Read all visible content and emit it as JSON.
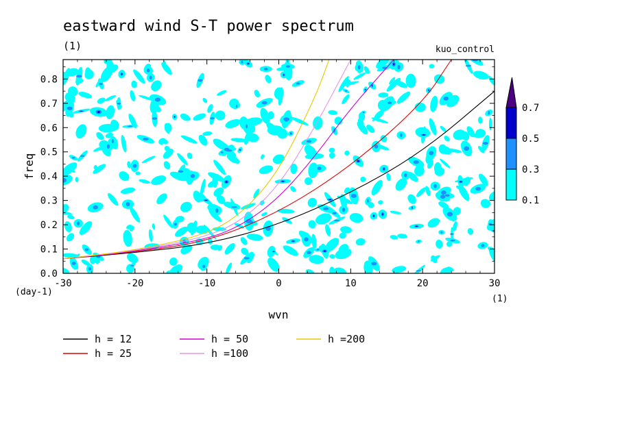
{
  "chart_data": {
    "type": "heatmap",
    "title": "eastward wind S-T power spectrum",
    "subtitle": "(1)",
    "run_label": "kuo_control",
    "xlabel": "wvn",
    "ylabel": "freq",
    "x_units": "(1)",
    "y_units": "(day-1)",
    "xlim": [
      -30,
      30
    ],
    "ylim": [
      0,
      0.88
    ],
    "x_ticks": [
      -30,
      -20,
      -10,
      0,
      10,
      20,
      30
    ],
    "x_tick_labels": [
      "-30",
      "-20",
      "-10",
      "0",
      "10",
      "20",
      "30"
    ],
    "y_ticks": [
      0,
      0.1,
      0.2,
      0.3,
      0.4,
      0.5,
      0.6,
      0.7,
      0.8
    ],
    "y_tick_labels": [
      "0.0",
      "0.1",
      "0.2",
      "0.3",
      "0.4",
      "0.5",
      "0.6",
      "0.7",
      "0.8"
    ],
    "colorbar": {
      "levels": [
        0.1,
        0.3,
        0.5,
        0.7
      ],
      "level_labels": [
        "0.1",
        "0.3",
        "0.5",
        "0.7"
      ],
      "colors": [
        "#00ffff",
        "#1e90ff",
        "#0000cd",
        "#4b0082"
      ],
      "extend": "max"
    },
    "curves": [
      {
        "name": "h = 12",
        "h": 12,
        "color": "#000000"
      },
      {
        "name": "h = 25",
        "h": 25,
        "color": "#e00000"
      },
      {
        "name": "h = 50",
        "h": 50,
        "color": "#d000d0"
      },
      {
        "name": "h =100",
        "h": 100,
        "color": "#e496e4"
      },
      {
        "name": "h =200",
        "h": 200,
        "color": "#e6c800"
      }
    ],
    "curve_points": {
      "h = 12": [
        [
          -30,
          0.06
        ],
        [
          -20,
          0.085
        ],
        [
          -10,
          0.12
        ],
        [
          0,
          0.2
        ],
        [
          10,
          0.33
        ],
        [
          20,
          0.5
        ],
        [
          30,
          0.75
        ]
      ],
      "h = 25": [
        [
          -30,
          0.06
        ],
        [
          -20,
          0.088
        ],
        [
          -10,
          0.13
        ],
        [
          0,
          0.25
        ],
        [
          10,
          0.44
        ],
        [
          20,
          0.7
        ],
        [
          24,
          0.88
        ]
      ],
      "h = 50": [
        [
          -30,
          0.06
        ],
        [
          -20,
          0.09
        ],
        [
          -10,
          0.14
        ],
        [
          -5,
          0.2
        ],
        [
          0,
          0.31
        ],
        [
          5,
          0.48
        ],
        [
          10,
          0.68
        ],
        [
          16,
          0.88
        ]
      ],
      "h =100": [
        [
          -30,
          0.06
        ],
        [
          -20,
          0.092
        ],
        [
          -10,
          0.15
        ],
        [
          -5,
          0.22
        ],
        [
          0,
          0.36
        ],
        [
          5,
          0.6
        ],
        [
          10,
          0.88
        ]
      ],
      "h =200": [
        [
          -30,
          0.06
        ],
        [
          -20,
          0.094
        ],
        [
          -10,
          0.16
        ],
        [
          -5,
          0.25
        ],
        [
          0,
          0.42
        ],
        [
          5,
          0.72
        ],
        [
          7,
          0.88
        ]
      ]
    },
    "grid": false,
    "legend_position": "bottom"
  }
}
